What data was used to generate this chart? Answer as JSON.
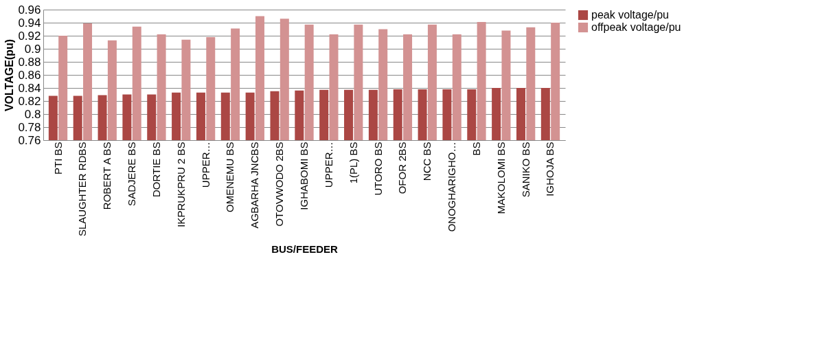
{
  "chart_data": {
    "type": "bar",
    "xlabel": "BUS/FEEDER",
    "ylabel": "VOLTAGE(pu)",
    "categories": [
      "PTI BS",
      "SLAUGHTER RDBS",
      "ROBERT A BS",
      "SADJERE BS",
      "DORTIE BS",
      "IKPRUKPRU 2 BS",
      "UPPER…",
      "OMENEMU BS",
      "AGBARHA JNCBS",
      "OTOVWODO 2BS",
      "IGHABOMI BS",
      "UPPER…",
      "1(PL) BS",
      "UTORO BS",
      "OFOR 2BS",
      "NCC BS",
      "ONOGHARIGHO…",
      "BS",
      "MAKOLOMI BS",
      "SANIKO  BS",
      "IGHOJA BS"
    ],
    "series": [
      {
        "name": "peak voltage/pu",
        "color": "#ab4744",
        "values": [
          0.828,
          0.828,
          0.829,
          0.83,
          0.83,
          0.833,
          0.833,
          0.833,
          0.833,
          0.835,
          0.836,
          0.837,
          0.837,
          0.837,
          0.838,
          0.838,
          0.838,
          0.838,
          0.84,
          0.84,
          0.84
        ]
      },
      {
        "name": "offpeak voltage/pu",
        "color": "#d39292",
        "values": [
          0.92,
          0.939,
          0.913,
          0.934,
          0.922,
          0.914,
          0.918,
          0.931,
          0.95,
          0.946,
          0.937,
          0.922,
          0.937,
          0.93,
          0.922,
          0.937,
          0.922,
          0.941,
          0.928,
          0.933,
          0.94
        ]
      }
    ],
    "ylim": [
      0.76,
      0.96
    ],
    "yticks": [
      0.76,
      0.78,
      {
        "value": 0.8,
        "label": "0.8"
      },
      0.82,
      0.84,
      0.86,
      0.88,
      {
        "value": 0.9,
        "label": "0.9"
      },
      0.92,
      0.94,
      0.96
    ],
    "grid": "y",
    "legend": "right"
  }
}
